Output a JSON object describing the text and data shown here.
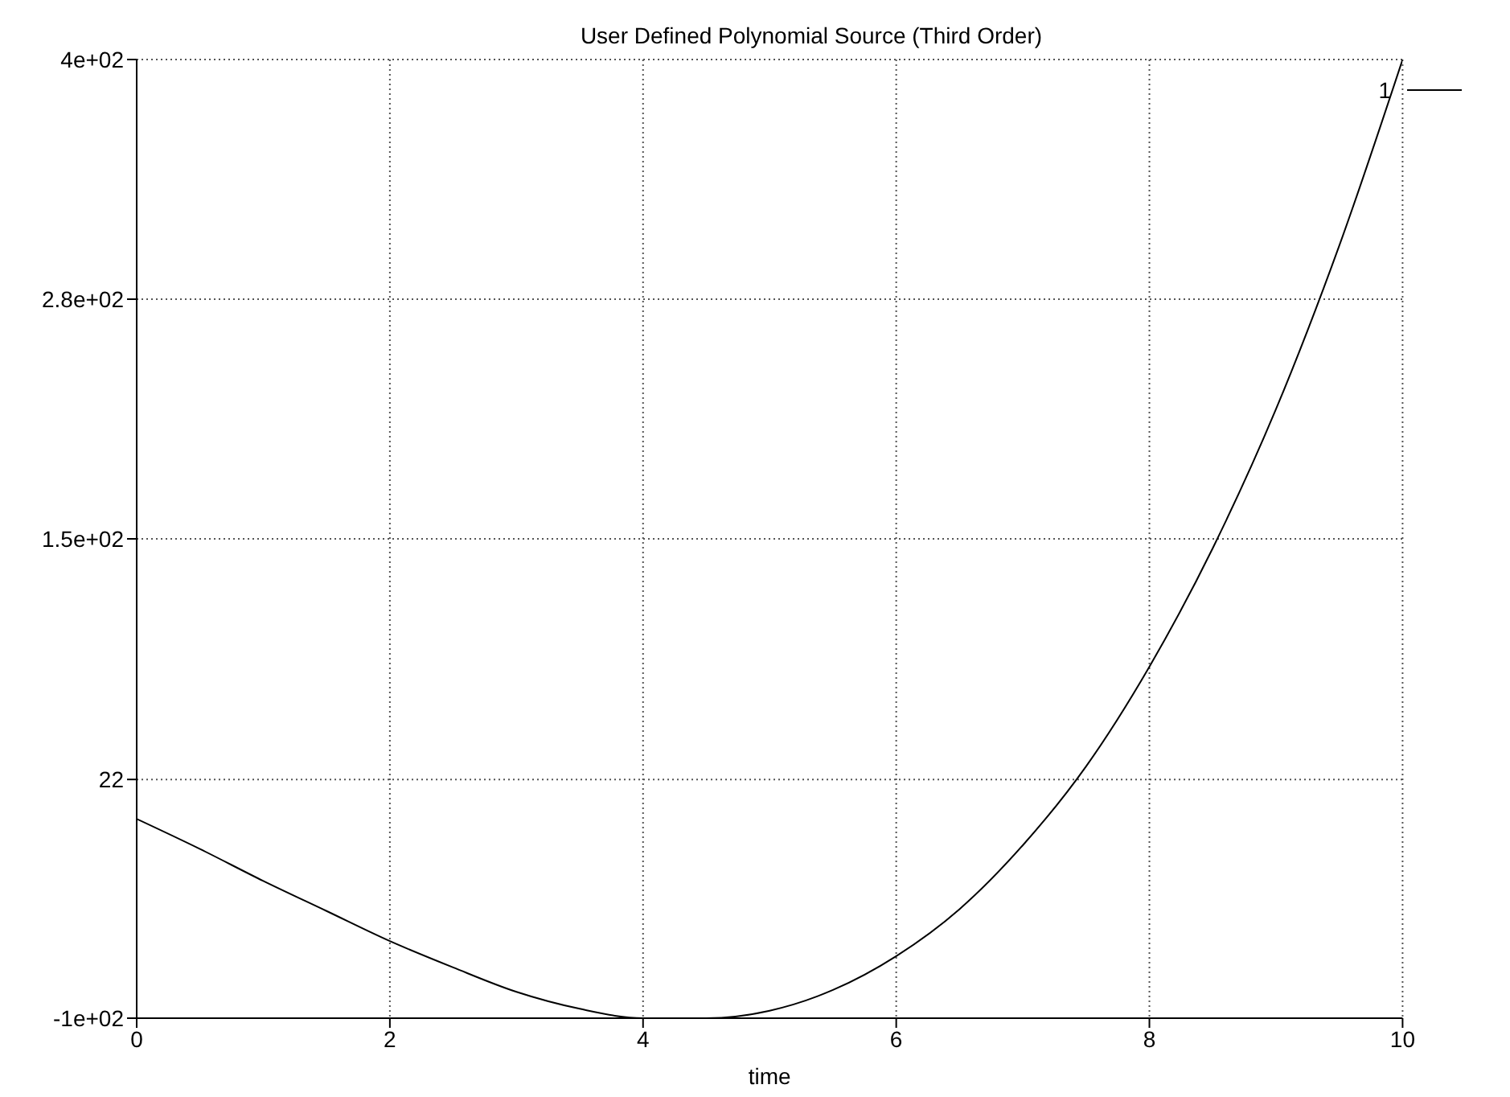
{
  "chart_data": {
    "type": "line",
    "title": "User Defined Polynomial Source (Third Order)",
    "xlabel": "time",
    "x": [
      0,
      0.5,
      1,
      1.5,
      2,
      2.5,
      3,
      3.5,
      4,
      4.5,
      5,
      5.5,
      6,
      6.5,
      7,
      7.5,
      8,
      8.5,
      9,
      9.5,
      10
    ],
    "series": [
      {
        "name": "1",
        "color": "#000000",
        "values": [
          1,
          -15,
          -32,
          -48,
          -64,
          -78,
          -91,
          -100,
          -105,
          -105,
          -101,
          -90,
          -72,
          -47,
          -13,
          29,
          82,
          145,
          219,
          306,
          405
        ]
      }
    ],
    "xlim": [
      0,
      10
    ],
    "xticks": [
      0,
      2,
      4,
      6,
      8,
      10
    ],
    "ylim": [
      -105,
      405
    ],
    "yticks": [
      {
        "value": -105,
        "label": "-1e+02"
      },
      22,
      {
        "value": 150,
        "label": "1.5e+02"
      },
      {
        "value": 277.5,
        "label": "2.8e+02"
      },
      {
        "value": 405,
        "label": "4e+02"
      }
    ],
    "grid": true,
    "legend": "top right",
    "marker": "none",
    "line_style": "solid"
  }
}
